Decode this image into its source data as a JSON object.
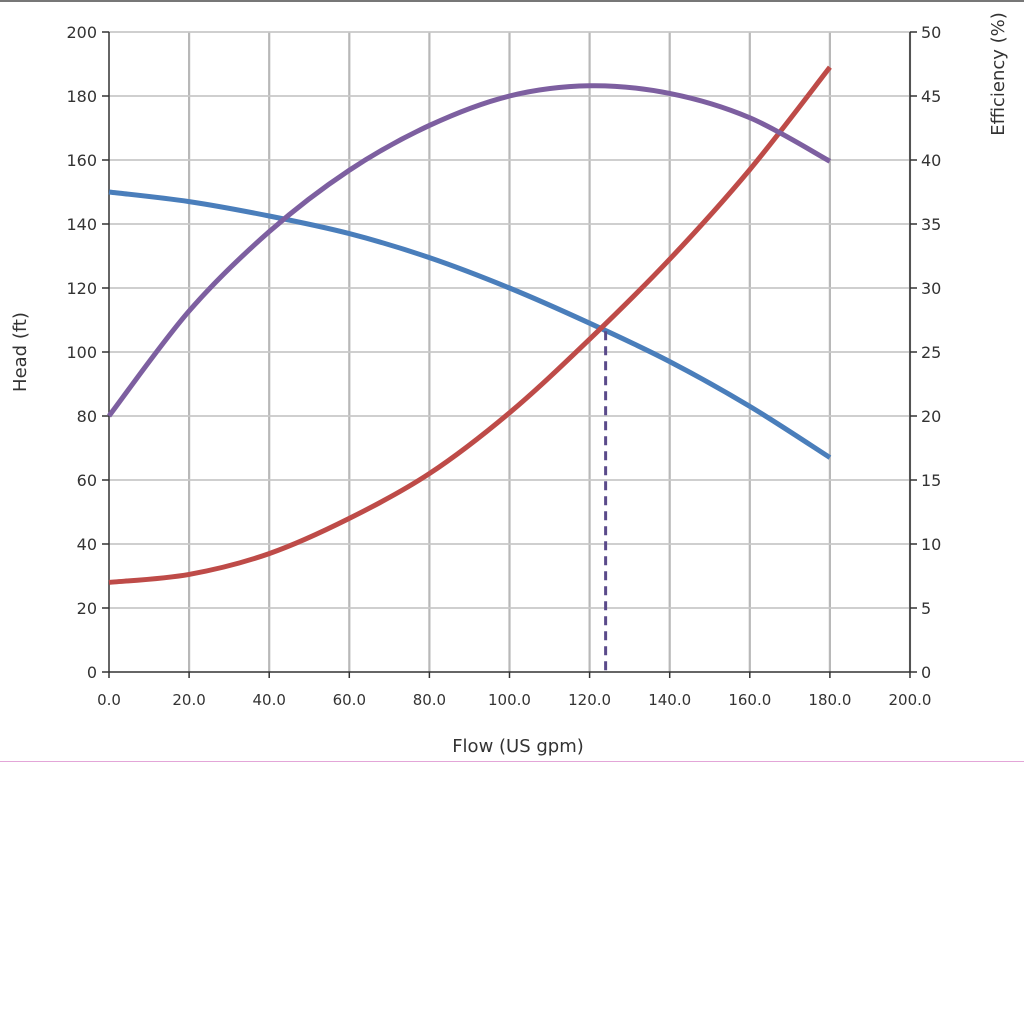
{
  "chart_data": {
    "type": "line",
    "xlabel": "Flow (US gpm)",
    "ylabel": "Head  (ft)",
    "y2label": "Efficiency (%)",
    "xlim": [
      0,
      200
    ],
    "ylim": [
      0,
      200
    ],
    "y2lim": [
      0,
      50
    ],
    "xticks": [
      "0.0",
      "20.0",
      "40.0",
      "60.0",
      "80.0",
      "100.0",
      "120.0",
      "140.0",
      "160.0",
      "180.0",
      "200.0"
    ],
    "yticks": [
      "0",
      "20",
      "40",
      "60",
      "80",
      "100",
      "120",
      "140",
      "160",
      "180",
      "200"
    ],
    "y2ticks": [
      "0",
      "5",
      "10",
      "15",
      "20",
      "25",
      "30",
      "35",
      "40",
      "45",
      "50"
    ],
    "grid": true,
    "x": [
      0,
      20,
      40,
      60,
      80,
      100,
      120,
      140,
      160,
      180
    ],
    "series": [
      {
        "axis": "left",
        "color": "#4a7ebb",
        "values": [
          150,
          147,
          142.5,
          137,
          129.5,
          120,
          109,
          97,
          83,
          67
        ]
      },
      {
        "axis": "left",
        "color": "#be4b48",
        "values": [
          28,
          30.5,
          37,
          48,
          62,
          81,
          104,
          129,
          157,
          189
        ]
      },
      {
        "axis": "right",
        "color": "#7d5fa0",
        "values": [
          20,
          28.2,
          34.4,
          39.2,
          42.7,
          45,
          45.8,
          45.2,
          43.3,
          39.9
        ]
      }
    ],
    "operating_point": {
      "x": 124,
      "y": 106.5,
      "color": "#5a4a8a",
      "style": "dashed"
    }
  }
}
